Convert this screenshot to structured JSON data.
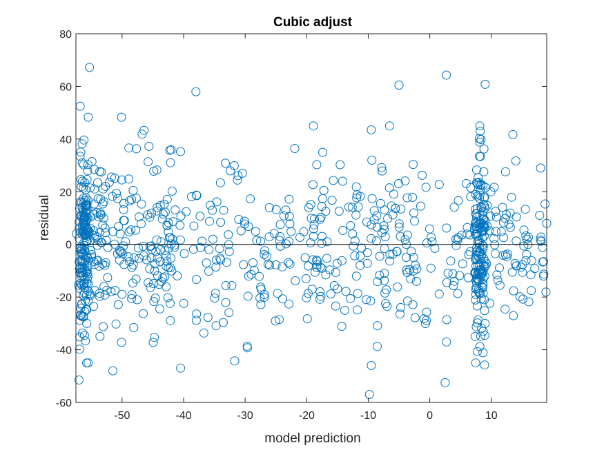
{
  "chart_data": {
    "type": "scatter",
    "title": "Cubic adjust",
    "xlabel": "model prediction",
    "ylabel": "residual",
    "xlim": [
      -57.5,
      19
    ],
    "ylim": [
      -60,
      80
    ],
    "xticks": [
      -50,
      -40,
      -30,
      -20,
      -10,
      0,
      10
    ],
    "yticks": [
      -60,
      -40,
      -20,
      0,
      20,
      40,
      60,
      80
    ],
    "xtick_labels": [
      "-50",
      "-40",
      "-30",
      "-20",
      "-10",
      "0",
      "10"
    ],
    "ytick_labels": [
      "-60",
      "-40",
      "-20",
      "0",
      "20",
      "40",
      "60",
      "80"
    ],
    "reference_line_y": 0,
    "grid": false,
    "marker": "open-circle",
    "marker_color": "#0072BD",
    "axis_color": "#262626",
    "reference_line_color": "#000000",
    "notable_points": [
      {
        "x": -56.8,
        "y": 52.5
      },
      {
        "x": -55.3,
        "y": 67.2
      },
      {
        "x": -55.5,
        "y": 48.3
      },
      {
        "x": -50.1,
        "y": 48.3
      },
      {
        "x": -38.0,
        "y": 58.0
      },
      {
        "x": -5.0,
        "y": 60.5
      },
      {
        "x": 2.7,
        "y": 64.3
      },
      {
        "x": 9.0,
        "y": 60.8
      },
      {
        "x": -57.0,
        "y": -51.5
      },
      {
        "x": -51.5,
        "y": -48.0
      },
      {
        "x": -40.5,
        "y": -47.0
      },
      {
        "x": -9.8,
        "y": -57.0
      },
      {
        "x": -9.5,
        "y": -46.0
      },
      {
        "x": 2.5,
        "y": -52.5
      },
      {
        "x": 8.9,
        "y": -45.8
      },
      {
        "x": -9.5,
        "y": 43.5
      },
      {
        "x": 13.5,
        "y": 41.7
      },
      {
        "x": 8.2,
        "y": 43.0
      },
      {
        "x": 18.0,
        "y": 29.0
      },
      {
        "x": 19.0,
        "y": 8.0
      },
      {
        "x": 18.5,
        "y": -12.0
      },
      {
        "x": 18.5,
        "y": -6.5
      }
    ],
    "generated_cloud": {
      "count": 900,
      "seed": 12345,
      "main_range": {
        "x": [
          -57.5,
          19
        ],
        "y": [
          -45,
          45
        ]
      },
      "dense_columns_x": [
        -57.0,
        9.0
      ],
      "dense_column_x_spread": 1.2
    }
  }
}
